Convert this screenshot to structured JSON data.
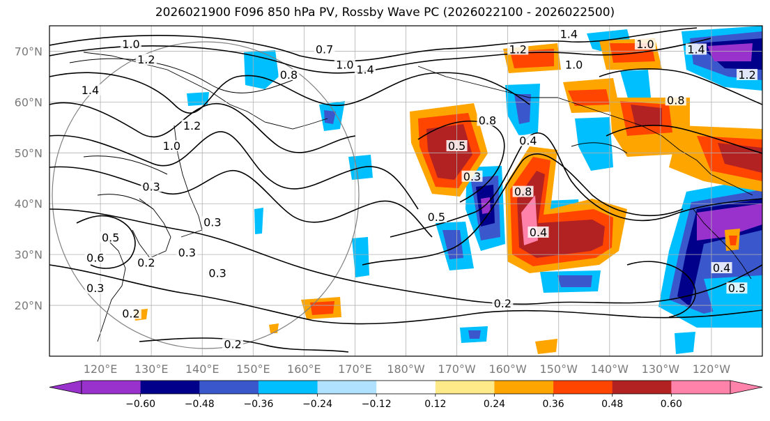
{
  "title": "2026021900 F096 850 hPa PV, Rossby Wave PC (2026022100 - 2026022500)",
  "lat_labels": [
    "70°N",
    "60°N",
    "50°N",
    "40°N",
    "30°N",
    "20°N"
  ],
  "lon_labels": [
    "120°E",
    "130°E",
    "140°E",
    "150°E",
    "160°E",
    "170°E",
    "180°W",
    "170°W",
    "160°W",
    "150°W",
    "140°W",
    "130°W",
    "120°W"
  ],
  "contour_labels": [
    {
      "text": "1.0",
      "lon": 126,
      "lat": 71
    },
    {
      "text": "1.2",
      "lon": 129,
      "lat": 68
    },
    {
      "text": "1.4",
      "lon": 118,
      "lat": 62
    },
    {
      "text": "0.7",
      "lon": 164,
      "lat": 70
    },
    {
      "text": "0.8",
      "lon": 157,
      "lat": 65
    },
    {
      "text": "1.0",
      "lon": 168,
      "lat": 67
    },
    {
      "text": "1.4",
      "lon": 172,
      "lat": 66
    },
    {
      "text": "1.2",
      "lon": 202,
      "lat": 70
    },
    {
      "text": "1.4",
      "lon": 212,
      "lat": 73
    },
    {
      "text": "1.0",
      "lon": 227,
      "lat": 71
    },
    {
      "text": "1.0",
      "lon": 213,
      "lat": 67
    },
    {
      "text": "1.4",
      "lon": 237,
      "lat": 70
    },
    {
      "text": "0.8",
      "lon": 233,
      "lat": 60
    },
    {
      "text": "1.2",
      "lon": 138,
      "lat": 55
    },
    {
      "text": "1.0",
      "lon": 134,
      "lat": 51
    },
    {
      "text": "0.3",
      "lon": 130,
      "lat": 43
    },
    {
      "text": "0.3",
      "lon": 142,
      "lat": 36
    },
    {
      "text": "0.3",
      "lon": 137,
      "lat": 30
    },
    {
      "text": "0.5",
      "lon": 122,
      "lat": 33
    },
    {
      "text": "0.6",
      "lon": 119,
      "lat": 29
    },
    {
      "text": "0.2",
      "lon": 129,
      "lat": 28
    },
    {
      "text": "0.3",
      "lon": 143,
      "lat": 26
    },
    {
      "text": "0.2",
      "lon": 126,
      "lat": 18
    },
    {
      "text": "0.2",
      "lon": 146,
      "lat": 12
    },
    {
      "text": "0.3",
      "lon": 119,
      "lat": 23
    },
    {
      "text": "0.5",
      "lon": 186,
      "lat": 37
    },
    {
      "text": "0.2",
      "lon": 199,
      "lat": 20
    },
    {
      "text": "0.8",
      "lon": 196,
      "lat": 56
    },
    {
      "text": "0.5",
      "lon": 190,
      "lat": 51
    },
    {
      "text": "0.3",
      "lon": 193,
      "lat": 45
    },
    {
      "text": "0.4",
      "lon": 204,
      "lat": 52
    },
    {
      "text": "0.8",
      "lon": 203,
      "lat": 42
    },
    {
      "text": "0.4",
      "lon": 206,
      "lat": 34
    },
    {
      "text": "0.4",
      "lon": 242,
      "lat": 27
    },
    {
      "text": "0.5",
      "lon": 245,
      "lat": 23
    },
    {
      "text": "1.2",
      "lon": 247,
      "lat": 65
    }
  ],
  "colorbar": {
    "tick_labels": [
      "−0.60",
      "−0.48",
      "−0.36",
      "−0.24",
      "−0.12",
      "0.12",
      "0.24",
      "0.36",
      "0.48",
      "0.60"
    ],
    "colors": [
      "#9932cc",
      "#00008b",
      "#3a57cc",
      "#00bfff",
      "#b0e2ff",
      "#ffffff",
      "#ffea8a",
      "#ffa500",
      "#ff4500",
      "#b22222",
      "#ff82ab"
    ]
  },
  "legend": {
    "positive_shading": "orange-red",
    "negative_shading": "blue-purple"
  }
}
